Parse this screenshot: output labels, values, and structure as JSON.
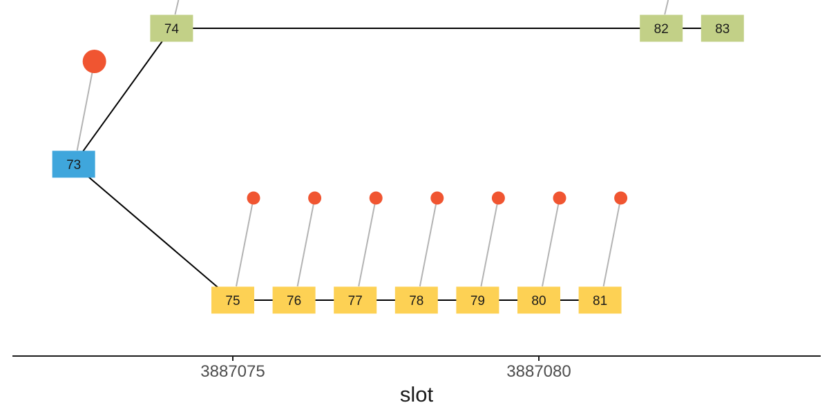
{
  "colors": {
    "green_block": "#c2d087",
    "yellow_block": "#fdd154",
    "blue_block": "#3fa6dc",
    "vote_dot": "#f05531",
    "chain_edge": "#000000",
    "vote_edge": "#b3b3b3",
    "axis": "#1a1a1a"
  },
  "axis": {
    "title": "slot",
    "ticks": [
      {
        "label": "3887075",
        "slot": 3887075
      },
      {
        "label": "3887080",
        "slot": 3887080
      }
    ]
  },
  "chart_data": {
    "type": "block-tree",
    "x_label": "slot",
    "blocks": [
      {
        "id": "73",
        "slot": 3887072.4,
        "lane": "middle",
        "color": "blue"
      },
      {
        "id": "74",
        "slot": 3887074.0,
        "lane": "top",
        "color": "green"
      },
      {
        "id": "75",
        "slot": 3887075.0,
        "lane": "bottom",
        "color": "yellow"
      },
      {
        "id": "76",
        "slot": 3887076.0,
        "lane": "bottom",
        "color": "yellow"
      },
      {
        "id": "77",
        "slot": 3887077.0,
        "lane": "bottom",
        "color": "yellow"
      },
      {
        "id": "78",
        "slot": 3887078.0,
        "lane": "bottom",
        "color": "yellow"
      },
      {
        "id": "79",
        "slot": 3887079.0,
        "lane": "bottom",
        "color": "yellow"
      },
      {
        "id": "80",
        "slot": 3887080.0,
        "lane": "bottom",
        "color": "yellow"
      },
      {
        "id": "81",
        "slot": 3887081.0,
        "lane": "bottom",
        "color": "yellow"
      },
      {
        "id": "82",
        "slot": 3887082.0,
        "lane": "top",
        "color": "green"
      },
      {
        "id": "83",
        "slot": 3887083.0,
        "lane": "top",
        "color": "green"
      }
    ],
    "edges": [
      [
        "73",
        "74"
      ],
      [
        "73",
        "75"
      ],
      [
        "74",
        "82"
      ],
      [
        "82",
        "83"
      ],
      [
        "75",
        "76"
      ],
      [
        "76",
        "77"
      ],
      [
        "77",
        "78"
      ],
      [
        "78",
        "79"
      ],
      [
        "79",
        "80"
      ],
      [
        "80",
        "81"
      ]
    ],
    "votes": [
      {
        "block": "73",
        "size": "large"
      },
      {
        "block": "75",
        "size": "small"
      },
      {
        "block": "76",
        "size": "small"
      },
      {
        "block": "77",
        "size": "small"
      },
      {
        "block": "78",
        "size": "small"
      },
      {
        "block": "79",
        "size": "small"
      },
      {
        "block": "80",
        "size": "small"
      },
      {
        "block": "81",
        "size": "small"
      }
    ],
    "offscreen_links": [
      "74",
      "82"
    ]
  }
}
